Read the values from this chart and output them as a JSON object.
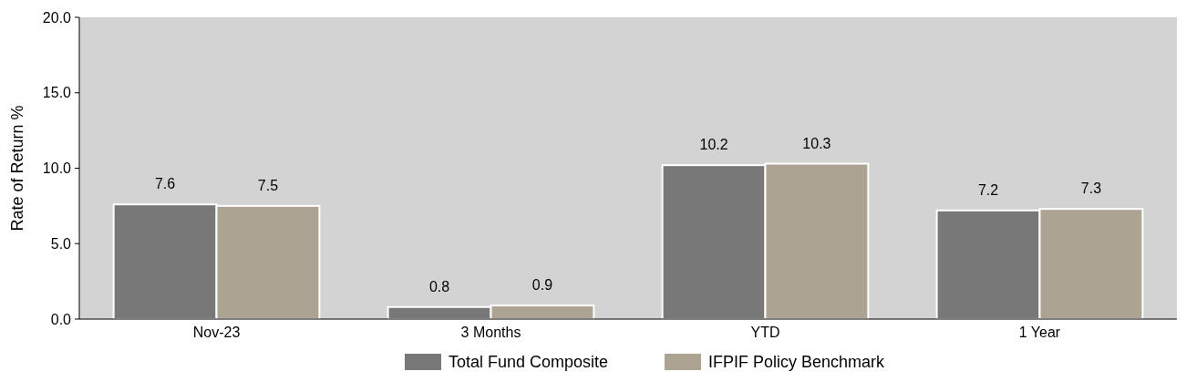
{
  "chart_data": {
    "type": "bar",
    "ylabel": "Rate of Return %",
    "categories": [
      "Nov-23",
      "3 Months",
      "YTD",
      "1 Year"
    ],
    "series": [
      {
        "name": "Total Fund Composite",
        "color": "#787878",
        "values": [
          7.6,
          0.8,
          10.2,
          7.2
        ]
      },
      {
        "name": "IFPIF Policy Benchmark",
        "color": "#ada393",
        "values": [
          7.5,
          0.9,
          10.3,
          7.3
        ]
      }
    ],
    "ylim": [
      0,
      20
    ],
    "yticks": [
      {
        "value": 0,
        "label": "0.0"
      },
      {
        "value": 5,
        "label": "5.0"
      },
      {
        "value": 10,
        "label": "10.0"
      },
      {
        "value": 15,
        "label": "15.0"
      },
      {
        "value": 20,
        "label": "20.0"
      }
    ],
    "data_labels": true,
    "legend": "bottom",
    "grid": false
  }
}
